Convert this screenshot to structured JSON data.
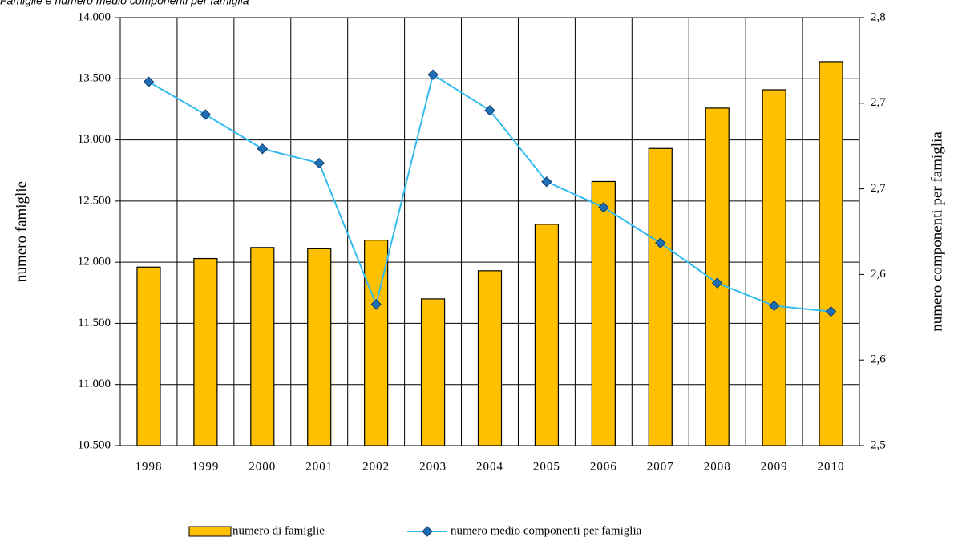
{
  "chart_data": {
    "type": "bar",
    "title": "Famiglie e numero medio componenti per famiglia",
    "ylabel": "numero famiglie",
    "y2label": "numero componenti per famiglia",
    "categories": [
      "1998",
      "1999",
      "2000",
      "2001",
      "2002",
      "2003",
      "2004",
      "2005",
      "2006",
      "2007",
      "2008",
      "2009",
      "2010"
    ],
    "series": [
      {
        "name": "numero di famiglie",
        "type": "bar",
        "color": "#ffc000",
        "values": [
          11960,
          12030,
          12120,
          12110,
          12180,
          11700,
          11930,
          12310,
          12660,
          12930,
          13260,
          13410,
          13640
        ]
      },
      {
        "name": "numero medio componenti per famiglia",
        "type": "line",
        "axis": "y2",
        "color": "#33bbee",
        "marker_color": "#1f6fb5",
        "values": [
          2.755,
          2.732,
          2.708,
          2.698,
          2.599,
          2.76,
          2.735,
          2.685,
          2.667,
          2.642,
          2.614,
          2.598,
          2.594
        ]
      }
    ],
    "ylim": [
      10500,
      14000
    ],
    "yticks": [
      {
        "value": 10500,
        "label": "10.500"
      },
      {
        "value": 11000,
        "label": "11.000"
      },
      {
        "value": 11500,
        "label": "11.500"
      },
      {
        "value": 12000,
        "label": "12.000"
      },
      {
        "value": 12500,
        "label": "12.500"
      },
      {
        "value": 13000,
        "label": "13.000"
      },
      {
        "value": 13500,
        "label": "13.500"
      },
      {
        "value": 14000,
        "label": "14.000"
      }
    ],
    "y2lim": [
      2.5,
      2.8
    ],
    "y2ticks": [
      {
        "value": 2.5,
        "label": "2,5"
      },
      {
        "value": 2.56,
        "label": "2,6"
      },
      {
        "value": 2.62,
        "label": "2,6"
      },
      {
        "value": 2.68,
        "label": "2,7"
      },
      {
        "value": 2.74,
        "label": "2,7"
      },
      {
        "value": 2.8,
        "label": "2,8"
      }
    ],
    "grid": true,
    "legend": "bottom"
  }
}
